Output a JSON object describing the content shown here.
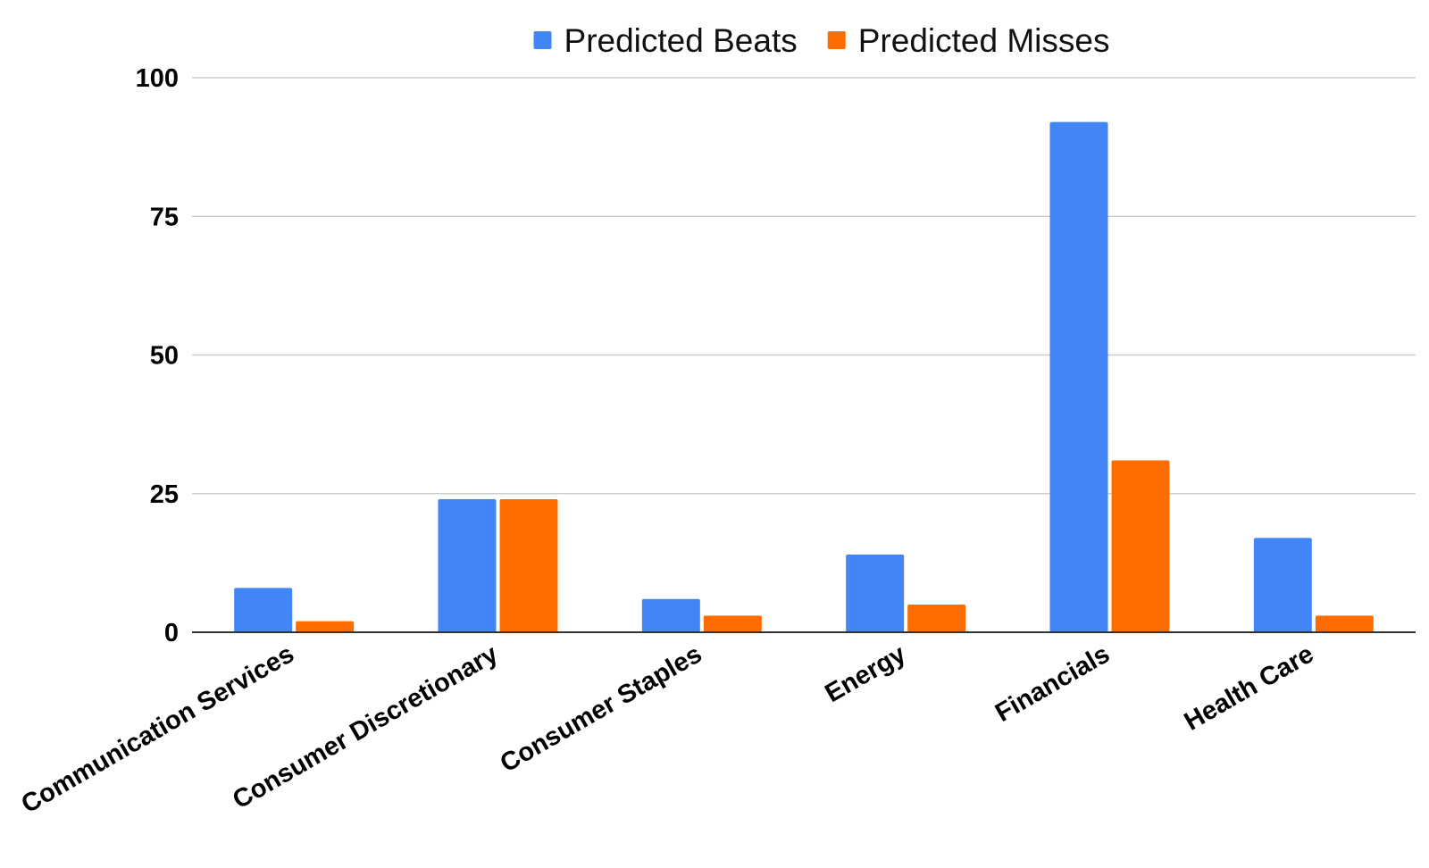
{
  "chart_data": {
    "type": "bar",
    "categories": [
      "Communication Services",
      "Consumer Discretionary",
      "Consumer Staples",
      "Energy",
      "Financials",
      "Health Care"
    ],
    "series": [
      {
        "name": "Predicted Beats",
        "color": "#4285F4",
        "values": [
          8,
          24,
          6,
          14,
          92,
          17
        ]
      },
      {
        "name": "Predicted Misses",
        "color": "#FF6D01",
        "values": [
          2,
          24,
          3,
          5,
          31,
          3
        ]
      }
    ],
    "ylim": [
      0,
      100
    ],
    "yticks": [
      "0",
      "25",
      "50",
      "75",
      "100"
    ],
    "grid": true,
    "legend_position": "top-center",
    "title": "",
    "xlabel": "",
    "ylabel": ""
  }
}
